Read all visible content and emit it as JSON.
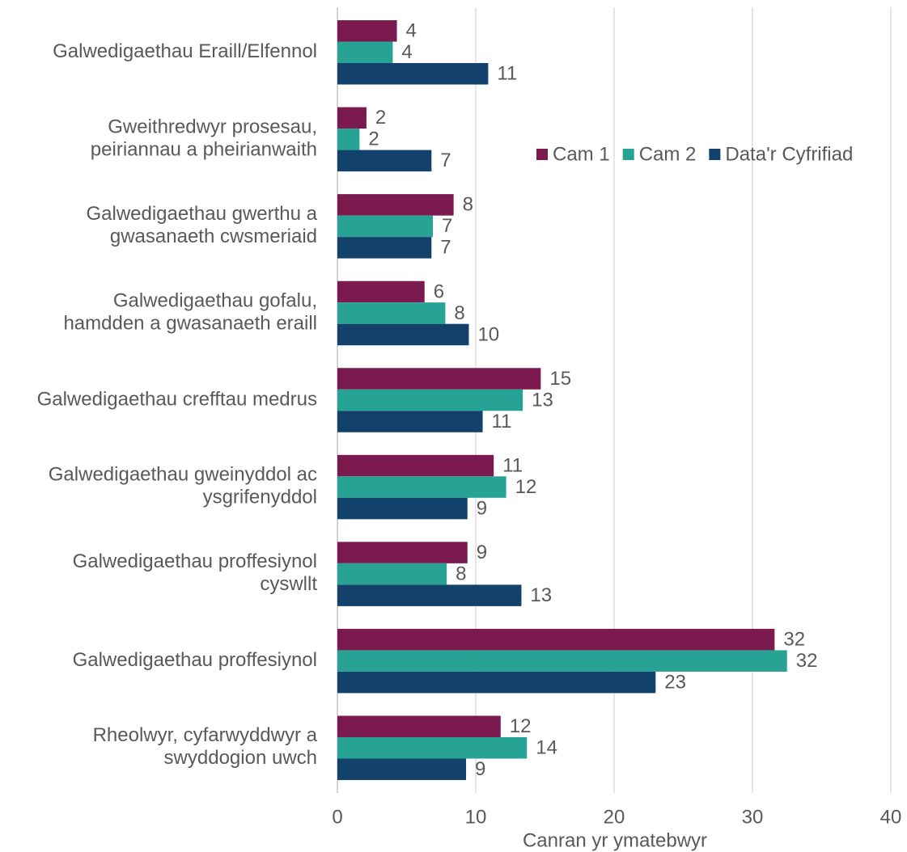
{
  "chart_data": {
    "type": "bar",
    "orientation": "horizontal",
    "x_label": "Canran yr ymatebwyr",
    "categories": [
      "Galwedigaethau Eraill/Elfennol",
      "Gweithredwyr prosesau,\npeiriannau a pheirianwaith",
      "Galwedigaethau gwerthu a\ngwasanaeth cwsmeriaid",
      "Galwedigaethau gofalu,\nhamdden a gwasanaeth eraill",
      "Galwedigaethau crefftau medrus",
      "Galwedigaethau gweinyddol ac\nysgrifenyddol",
      "Galwedigaethau proffesiynol\ncyswllt",
      "Galwedigaethau proffesiynol",
      "Rheolwyr, cyfarwyddwyr a\nswyddogion uwch"
    ],
    "series": [
      {
        "name": "Cam 1",
        "color": "#7b1a4e",
        "values": [
          4.3,
          2.1,
          8.4,
          6.3,
          14.7,
          11.3,
          9.4,
          31.6,
          11.8
        ],
        "value_labels": [
          "4",
          "2",
          "8",
          "6",
          "15",
          "11",
          "9",
          "32",
          "12"
        ]
      },
      {
        "name": "Cam 2",
        "color": "#26a395",
        "values": [
          4.0,
          1.6,
          6.9,
          7.8,
          13.4,
          12.2,
          7.9,
          32.5,
          13.7
        ],
        "value_labels": [
          "4",
          "2",
          "7",
          "8",
          "13",
          "12",
          "8",
          "32",
          "14"
        ]
      },
      {
        "name": "Data'r Cyfrifiad",
        "color": "#12426b",
        "values": [
          10.9,
          6.8,
          6.8,
          9.5,
          10.5,
          9.4,
          13.3,
          23.0,
          9.3
        ],
        "value_labels": [
          "11",
          "7",
          "7",
          "10",
          "11",
          "9",
          "13",
          "23",
          "9"
        ]
      }
    ],
    "xlim": [
      0,
      40
    ],
    "xticks": [
      0,
      10,
      20,
      30,
      40
    ],
    "grid": true,
    "legend": "upper right"
  }
}
